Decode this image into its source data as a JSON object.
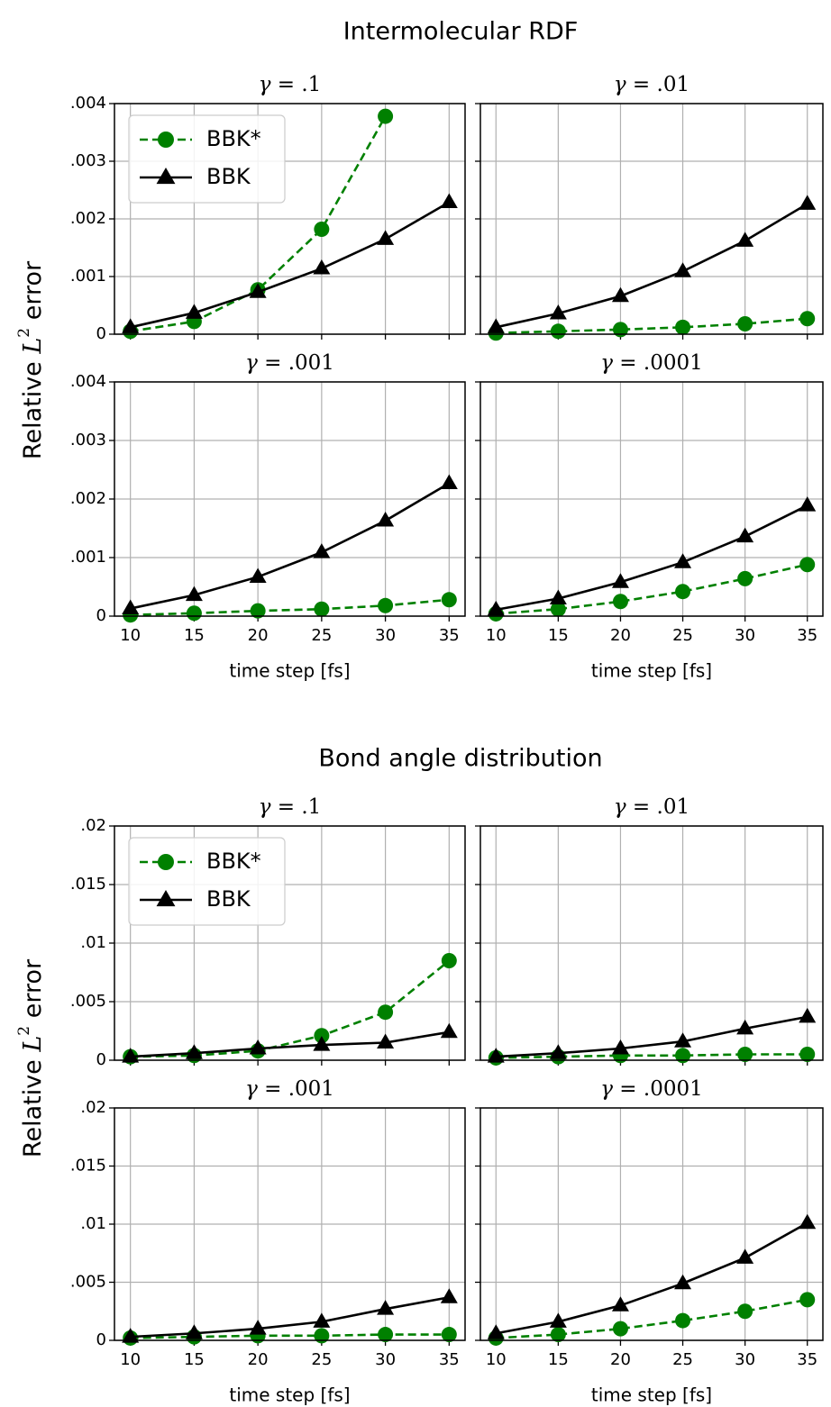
{
  "chart_data": [
    {
      "type": "line",
      "title": "Intermolecular RDF",
      "ylabel": "Relative $L^2$ error",
      "xlabel": "time step [fs]",
      "x": [
        10,
        15,
        20,
        25,
        30,
        35
      ],
      "xticklabels": [
        "10",
        "15",
        "20",
        "25",
        "30",
        "35"
      ],
      "ylim": [
        0,
        0.004
      ],
      "yticks": [
        0,
        0.001,
        0.002,
        0.003,
        0.004
      ],
      "yticklabels": [
        "0",
        ".001",
        ".002",
        ".003",
        ".004"
      ],
      "grid": true,
      "legend": {
        "placement": "top-left",
        "panel": 0
      },
      "series_styles": [
        {
          "name": "BBK*",
          "color": "#008000",
          "marker": "circle",
          "dash": "dashed"
        },
        {
          "name": "BBK",
          "color": "#000000",
          "marker": "triangle",
          "dash": "solid"
        }
      ],
      "panels": [
        {
          "title_symbol": "γ",
          "title_value": " = .1",
          "series": [
            {
              "name": "BBK*",
              "values": [
                5e-05,
                0.00022,
                0.00077,
                0.00182,
                0.00378,
                null
              ]
            },
            {
              "name": "BBK",
              "values": [
                0.00012,
                0.00037,
                0.00073,
                0.00114,
                0.00165,
                0.00229
              ]
            }
          ]
        },
        {
          "title_symbol": "γ",
          "title_value": " = .01",
          "series": [
            {
              "name": "BBK*",
              "values": [
                2e-05,
                5e-05,
                8e-05,
                0.00012,
                0.00018,
                0.00027
              ]
            },
            {
              "name": "BBK",
              "values": [
                0.00012,
                0.00036,
                0.00066,
                0.00109,
                0.00162,
                0.00226
              ]
            }
          ]
        },
        {
          "title_symbol": "γ",
          "title_value": " = .001",
          "series": [
            {
              "name": "BBK*",
              "values": [
                2e-05,
                5e-05,
                9e-05,
                0.00012,
                0.00018,
                0.00028
              ]
            },
            {
              "name": "BBK",
              "values": [
                0.00013,
                0.00036,
                0.00067,
                0.00109,
                0.00163,
                0.00227
              ]
            }
          ]
        },
        {
          "title_symbol": "γ",
          "title_value": " = .0001",
          "series": [
            {
              "name": "BBK*",
              "values": [
                4e-05,
                0.00012,
                0.00025,
                0.00042,
                0.00064,
                0.00088
              ]
            },
            {
              "name": "BBK",
              "values": [
                0.00011,
                0.0003,
                0.00058,
                0.00092,
                0.00136,
                0.00189
              ]
            }
          ]
        }
      ]
    },
    {
      "type": "line",
      "title": "Bond angle distribution",
      "ylabel": "Relative $L^2$ error",
      "xlabel": "time step [fs]",
      "x": [
        10,
        15,
        20,
        25,
        30,
        35
      ],
      "xticklabels": [
        "10",
        "15",
        "20",
        "25",
        "30",
        "35"
      ],
      "ylim": [
        0,
        0.02
      ],
      "yticks": [
        0,
        0.005,
        0.01,
        0.015,
        0.02
      ],
      "yticklabels": [
        "0",
        ".005",
        ".01",
        ".015",
        ".02"
      ],
      "grid": true,
      "legend": {
        "placement": "top-left",
        "panel": 0
      },
      "series_styles": [
        {
          "name": "BBK*",
          "color": "#008000",
          "marker": "circle",
          "dash": "dashed"
        },
        {
          "name": "BBK",
          "color": "#000000",
          "marker": "triangle",
          "dash": "solid"
        }
      ],
      "panels": [
        {
          "title_symbol": "γ",
          "title_value": " = .1",
          "series": [
            {
              "name": "BBK*",
              "values": [
                0.0003,
                0.0004,
                0.0008,
                0.0021,
                0.0041,
                0.0085
              ]
            },
            {
              "name": "BBK",
              "values": [
                0.0003,
                0.0006,
                0.001,
                0.0013,
                0.0015,
                0.0024
              ]
            }
          ]
        },
        {
          "title_symbol": "γ",
          "title_value": " = .01",
          "series": [
            {
              "name": "BBK*",
              "values": [
                0.0002,
                0.0003,
                0.0004,
                0.0004,
                0.0005,
                0.0005
              ]
            },
            {
              "name": "BBK",
              "values": [
                0.0003,
                0.0006,
                0.001,
                0.0016,
                0.0027,
                0.0037
              ]
            }
          ]
        },
        {
          "title_symbol": "γ",
          "title_value": " = .001",
          "series": [
            {
              "name": "BBK*",
              "values": [
                0.0002,
                0.0003,
                0.0004,
                0.0004,
                0.0005,
                0.0005
              ]
            },
            {
              "name": "BBK",
              "values": [
                0.0003,
                0.0006,
                0.001,
                0.0016,
                0.0027,
                0.0037
              ]
            }
          ]
        },
        {
          "title_symbol": "γ",
          "title_value": " = .0001",
          "series": [
            {
              "name": "BBK*",
              "values": [
                0.0002,
                0.0005,
                0.001,
                0.0017,
                0.0025,
                0.0035
              ]
            },
            {
              "name": "BBK",
              "values": [
                0.0006,
                0.0016,
                0.003,
                0.0049,
                0.0071,
                0.0101
              ]
            }
          ]
        }
      ]
    }
  ]
}
